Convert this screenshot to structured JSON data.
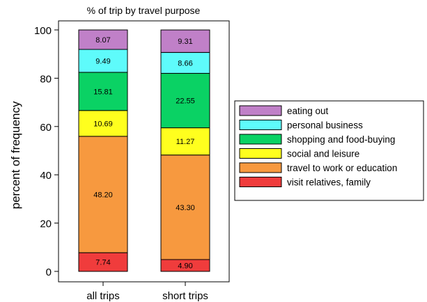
{
  "chart_data": {
    "type": "bar",
    "stacked": true,
    "title": "% of trip by travel purpose",
    "xlabel": "",
    "ylabel": "percent of frequency",
    "ylim": [
      0,
      100
    ],
    "yticks": [
      0,
      20,
      40,
      60,
      80,
      100
    ],
    "categories": [
      "all trips",
      "short trips"
    ],
    "series": [
      {
        "name": "visit relatives, family",
        "color": "#f03c3c",
        "values": [
          7.74,
          4.9
        ],
        "labels": [
          "7.74",
          "4.90"
        ]
      },
      {
        "name": "travel to work or education",
        "color": "#f7993f",
        "values": [
          48.2,
          43.3
        ],
        "labels": [
          "48.20",
          "43.30"
        ]
      },
      {
        "name": " social and leisure",
        "color": "#ffff1e",
        "values": [
          10.69,
          11.27
        ],
        "labels": [
          "10.69",
          "11.27"
        ]
      },
      {
        "name": "shopping and food-buying",
        "color": "#0ad264",
        "values": [
          15.81,
          22.55
        ],
        "labels": [
          "15.81",
          "22.55"
        ]
      },
      {
        "name": "personal business",
        "color": "#5efbfb",
        "values": [
          9.49,
          8.66
        ],
        "labels": [
          "9.49",
          "8.66"
        ]
      },
      {
        "name": "eating out",
        "color": "#c080c8",
        "values": [
          8.07,
          9.31
        ],
        "labels": [
          "8.07",
          "9.31"
        ]
      }
    ],
    "legend": {
      "placement": "right",
      "order": [
        "eating out",
        "personal business",
        "shopping and food-buying",
        " social and leisure",
        "travel to work or education",
        "visit relatives, family"
      ]
    },
    "grid": false
  }
}
